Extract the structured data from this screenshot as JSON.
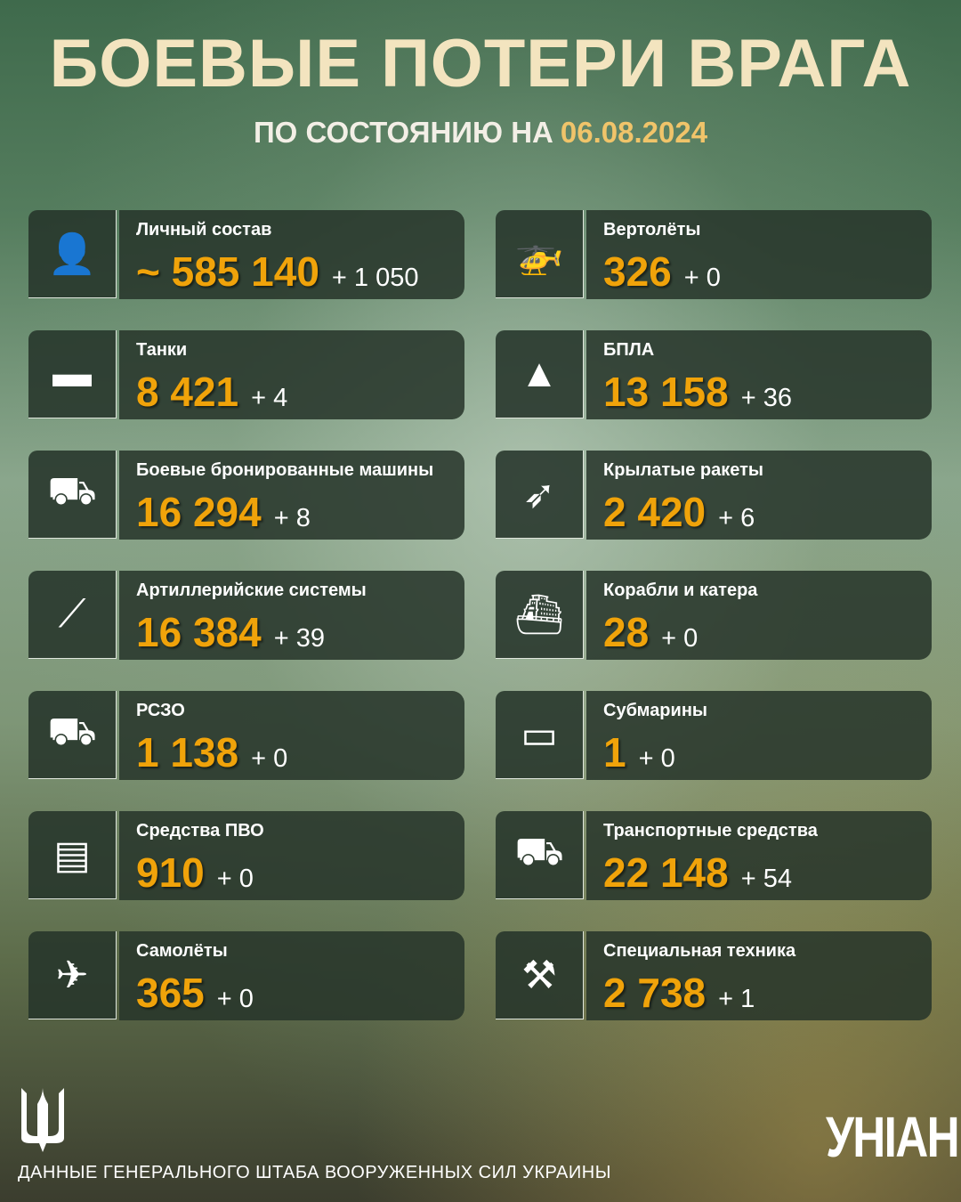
{
  "header": {
    "title": "БОЕВЫЕ ПОТЕРИ ВРАГА",
    "subtitle": "ПО СОСТОЯНИЮ НА",
    "date": "06.08.2024"
  },
  "colors": {
    "accent": "#f0a30a",
    "title": "#f3e4bf",
    "panel": "#26342a"
  },
  "left": [
    {
      "icon": "soldier-icon",
      "glyph": "👤",
      "label": "Личный состав",
      "value": "~ 585 140",
      "delta": "+ 1 050"
    },
    {
      "icon": "tank-icon",
      "glyph": "▬",
      "label": "Танки",
      "value": "8 421",
      "delta": "+ 4"
    },
    {
      "icon": "apc-icon",
      "glyph": "⛟",
      "label": "Боевые бронированные машины",
      "value": "16 294",
      "delta": "+ 8"
    },
    {
      "icon": "artillery-icon",
      "glyph": "⟋",
      "label": "Артиллерийские системы",
      "value": "16 384",
      "delta": "+ 39"
    },
    {
      "icon": "mlrs-icon",
      "glyph": "⛟",
      "label": "РСЗО",
      "value": "1 138",
      "delta": "+ 0"
    },
    {
      "icon": "air-defense-icon",
      "glyph": "▤",
      "label": "Средства ПВО",
      "value": "910",
      "delta": "+ 0"
    },
    {
      "icon": "aircraft-icon",
      "glyph": "✈",
      "label": "Самолёты",
      "value": "365",
      "delta": "+ 0"
    }
  ],
  "right": [
    {
      "icon": "helicopter-icon",
      "glyph": "🚁",
      "label": "Вертолёты",
      "value": "326",
      "delta": "+ 0"
    },
    {
      "icon": "drone-icon",
      "glyph": "▲",
      "label": "БПЛА",
      "value": "13 158",
      "delta": "+ 36"
    },
    {
      "icon": "cruise-missile-icon",
      "glyph": "➶",
      "label": "Крылатые ракеты",
      "value": "2 420",
      "delta": "+ 6"
    },
    {
      "icon": "ship-icon",
      "glyph": "⛴",
      "label": "Корабли и катера",
      "value": "28",
      "delta": "+ 0"
    },
    {
      "icon": "submarine-icon",
      "glyph": "▭",
      "label": "Субмарины",
      "value": "1",
      "delta": "+ 0"
    },
    {
      "icon": "truck-icon",
      "glyph": "⛟",
      "label": "Транспортные средства",
      "value": "22 148",
      "delta": "+ 54"
    },
    {
      "icon": "excavator-icon",
      "glyph": "⚒",
      "label": "Специальная техника",
      "value": "2 738",
      "delta": "+ 1"
    }
  ],
  "footer": {
    "source": "ДАННЫЕ ГЕНЕРАЛЬНОГО ШТАБА ВООРУЖЕННЫХ СИЛ УКРАИНЫ",
    "logo": "УНІАН",
    "emblem": "trident"
  }
}
